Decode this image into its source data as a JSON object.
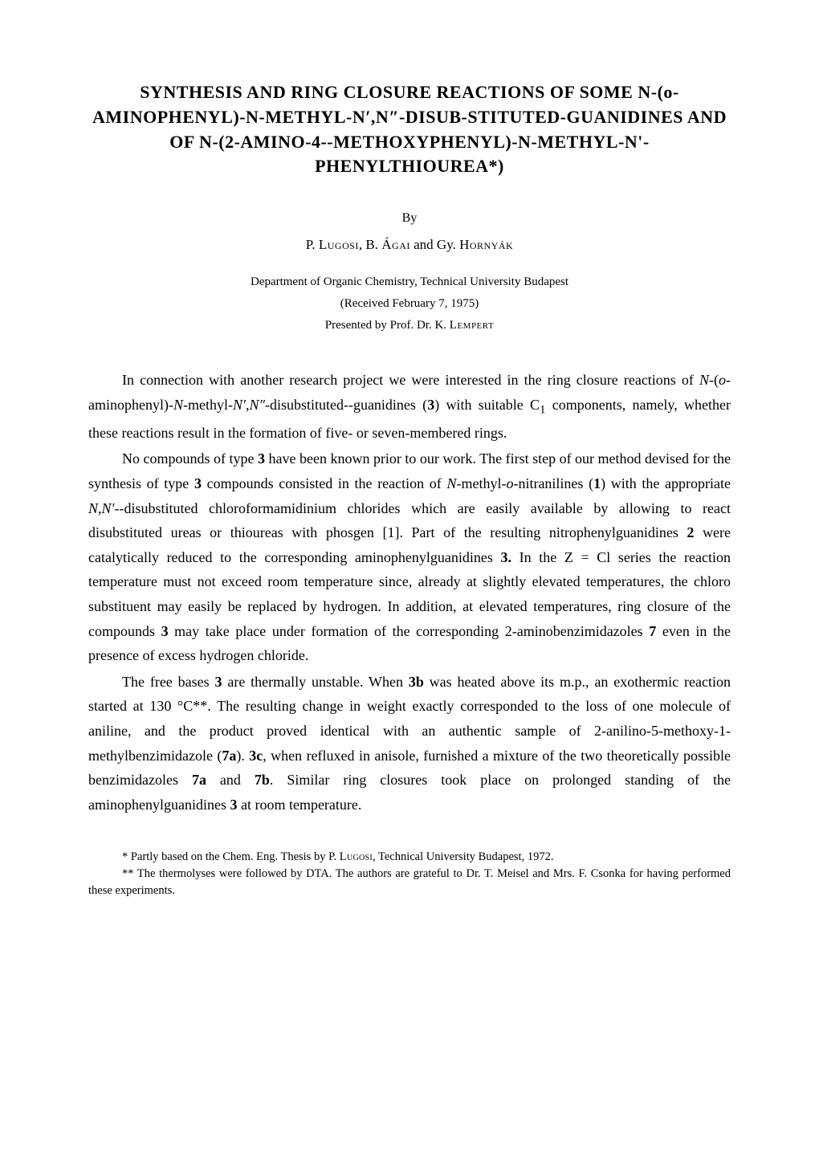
{
  "title": "SYNTHESIS AND RING CLOSURE REACTIONS OF SOME N-(o-AMINOPHENYL)-N-METHYL-N′,N″-DISUB-STITUTED-GUANIDINES AND OF N-(2-AMINO-4--METHOXYPHENYL)-N-METHYL-N'-PHENYLTHIOUREA*)",
  "by": "By",
  "authors_html": "P. <span class='sc'>Lugosi</span>, B. <span class='sc'>Ágai</span> and Gy. <span class='sc'>Hornyák</span>",
  "affiliation": "Department of Organic Chemistry, Technical University Budapest",
  "received": "(Received February 7, 1975)",
  "presented_html": "Presented by Prof. Dr. K. <span class='sc'>Lempert</span>",
  "paragraphs": [
    "In connection with another research project we were interested in the ring closure reactions of <i>N</i>-(<i>o</i>-aminophenyl)-<i>N</i>-methyl-<i>N′</i>,<i>N″</i>-disubstituted--guanidines (<b>3</b>) with suitable C<sub>1</sub> components, namely, whether these reactions result in the formation of five- or seven-membered rings.",
    "No compounds of type <b>3</b> have been known prior to our work. The first step of our method devised for the synthesis of type <b>3</b> compounds consisted in the reaction of <i>N</i>-methyl-<i>o</i>-nitranilines (<b>1</b>) with the appropriate <i>N,N′</i>--disubstituted chloroformamidinium chlorides which are easily available by allowing to react disubstituted ureas or thioureas with phosgen [1]. Part of the resulting nitrophenylguanidines <b>2</b> were catalytically reduced to the corresponding aminophenylguanidines <b>3.</b> In the Z = Cl series the reaction temperature must not exceed room temperature since, already at slightly elevated temperatures, the chloro substituent may easily be replaced by hydrogen. In addition, at elevated temperatures, ring closure of the compounds <b>3</b> may take place under formation of the corresponding 2-aminobenzimidazoles <b>7</b> even in the presence of excess hydrogen chloride.",
    "The free bases <b>3</b> are thermally unstable. When <b>3b</b> was heated above its m.p., an exothermic reaction started at 130 °C**. The resulting change in weight exactly corresponded to the loss of one molecule of aniline, and the product proved identical with an authentic sample of 2-anilino-5-methoxy-1-methylbenzimidazole (<b>7a</b>). <b>3c</b>, when refluxed in anisole, furnished a mixture of the two theoretically possible benzimidazoles <b>7a</b> and <b>7b</b>. Similar ring closures took place on prolonged standing of the aminophenylguanidines <b>3</b> at room temperature."
  ],
  "footnotes": [
    "* Partly based on the Chem. Eng. Thesis by P. <span class='sc'>Lugosi</span>, Technical University Budapest, 1972.",
    "** The thermolyses were followed by DTA. The authors are grateful to Dr. T. Meisel and Mrs. F. Csonka for having performed these experiments."
  ],
  "colors": {
    "background": "#ffffff",
    "text": "#000000"
  },
  "typography": {
    "title_fontsize": 22,
    "body_fontsize": 18,
    "footnote_fontsize": 14.5,
    "line_height": 1.7
  }
}
